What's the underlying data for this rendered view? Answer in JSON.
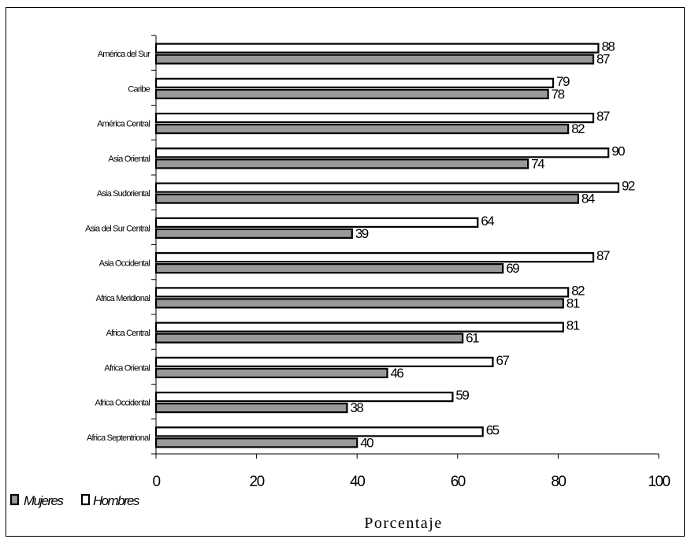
{
  "chart_data": {
    "type": "bar",
    "orientation": "horizontal",
    "categories": [
      "América del Sur",
      "Caribe",
      "América Central",
      "Asia Oriental",
      "Asia Sudoriental",
      "Asia del Sur Central",
      "Asia Occidental",
      "Africa Meridional",
      "Africa Central",
      "Africa Oriental",
      "Africa Occidental",
      "Africa Septentrional"
    ],
    "series": [
      {
        "name": "Hombres",
        "values": [
          88,
          79,
          87,
          90,
          92,
          64,
          87,
          82,
          81,
          67,
          59,
          65
        ],
        "color": "#ffffff"
      },
      {
        "name": "Mujeres",
        "values": [
          87,
          78,
          82,
          74,
          84,
          39,
          69,
          81,
          61,
          46,
          38,
          40
        ],
        "color": "#999999"
      }
    ],
    "xlabel": "Porcentaje",
    "ylabel": "",
    "xlim": [
      0,
      100
    ],
    "xticks": [
      0,
      20,
      40,
      60,
      80,
      100
    ],
    "grid": false,
    "legend": {
      "placement": "bottom-left",
      "entries": [
        "Mujeres",
        "Hombres"
      ]
    }
  }
}
